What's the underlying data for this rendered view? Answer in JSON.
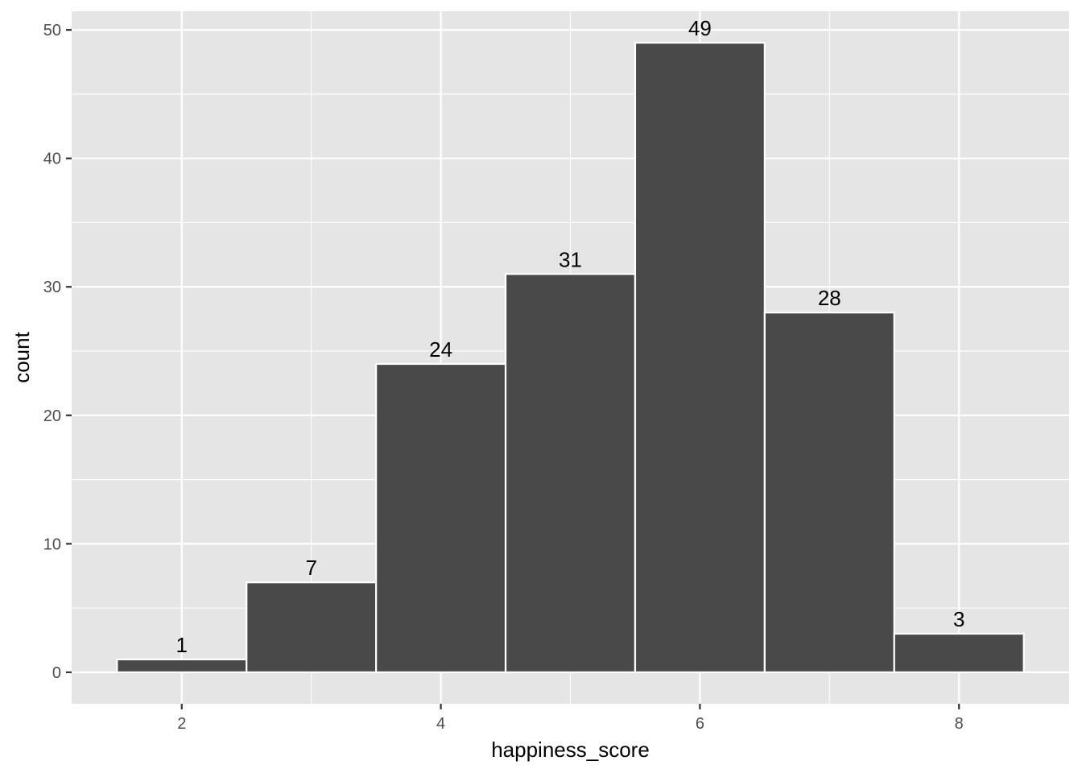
{
  "chart_data": {
    "type": "bar",
    "subtype": "histogram",
    "bins": [
      {
        "x": 2,
        "count": 1
      },
      {
        "x": 3,
        "count": 7
      },
      {
        "x": 4,
        "count": 24
      },
      {
        "x": 5,
        "count": 31
      },
      {
        "x": 6,
        "count": 49
      },
      {
        "x": 7,
        "count": 28
      },
      {
        "x": 8,
        "count": 3
      }
    ],
    "bin_width": 1,
    "value_labels": [
      "1",
      "7",
      "24",
      "31",
      "49",
      "28",
      "3"
    ],
    "xlabel": "happiness_score",
    "ylabel": "count",
    "x_ticks": [
      {
        "value": 2,
        "label": "2"
      },
      {
        "value": 4,
        "label": "4"
      },
      {
        "value": 6,
        "label": "6"
      },
      {
        "value": 8,
        "label": "8"
      }
    ],
    "y_ticks": [
      {
        "value": 0,
        "label": "0"
      },
      {
        "value": 10,
        "label": "10"
      },
      {
        "value": 20,
        "label": "20"
      },
      {
        "value": 30,
        "label": "30"
      },
      {
        "value": 40,
        "label": "40"
      },
      {
        "value": 50,
        "label": "50"
      }
    ],
    "xlim": [
      1.15,
      8.85
    ],
    "ylim": [
      -2.45,
      51.45
    ],
    "grid": true,
    "colors": {
      "panel_background": "#e5e5e5",
      "grid": "#ffffff",
      "bar_fill": "#494949",
      "bar_outline": "#ffffff",
      "tick_text": "#4d4d4d",
      "tick_mark": "#333333",
      "label_text": "#000000"
    }
  }
}
